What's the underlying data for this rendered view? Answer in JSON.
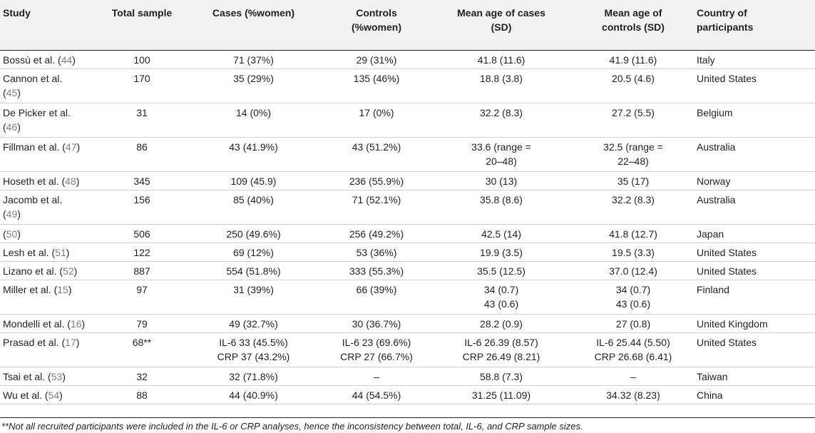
{
  "table": {
    "headers": [
      "Study",
      "Total sample",
      "Cases (%women)",
      "Controls (%women)",
      "Mean age of cases (SD)",
      "Mean age of controls (SD)",
      "Country of participants"
    ],
    "header_lines": [
      [
        "Study"
      ],
      [
        "Total sample"
      ],
      [
        "Cases (%women)"
      ],
      [
        "Controls",
        "(%women)"
      ],
      [
        "Mean age of cases",
        "(SD)"
      ],
      [
        "Mean age of",
        "controls (SD)"
      ],
      [
        "Country of",
        "participants"
      ]
    ],
    "rows": [
      {
        "study_parts": [
          {
            "t": "Bossù et al. ("
          },
          {
            "t": "44",
            "ref": true
          },
          {
            "t": ")"
          }
        ],
        "total": "100",
        "cases": [
          "71 (37%)"
        ],
        "controls": [
          "29 (31%)"
        ],
        "age_cases": [
          "41.8 (11.6)"
        ],
        "age_controls": [
          "41.9 (11.6)"
        ],
        "country": "Italy"
      },
      {
        "study_parts": [
          {
            "t": "Cannon et al."
          },
          {
            "br": true
          },
          {
            "t": "("
          },
          {
            "t": "45",
            "ref": true
          },
          {
            "t": ")"
          }
        ],
        "total": "170",
        "cases": [
          "35 (29%)"
        ],
        "controls": [
          "135 (46%)"
        ],
        "age_cases": [
          "18.8 (3.8)"
        ],
        "age_controls": [
          "20.5 (4.6)"
        ],
        "country": "United States"
      },
      {
        "study_parts": [
          {
            "t": "De Picker et al."
          },
          {
            "br": true
          },
          {
            "t": "("
          },
          {
            "t": "46",
            "ref": true
          },
          {
            "t": ")"
          }
        ],
        "total": "31",
        "cases": [
          "14 (0%)"
        ],
        "controls": [
          "17 (0%)"
        ],
        "age_cases": [
          "32.2 (8.3)"
        ],
        "age_controls": [
          "27.2 (5.5)"
        ],
        "country": "Belgium"
      },
      {
        "study_parts": [
          {
            "t": "Fillman et al. ("
          },
          {
            "t": "47",
            "ref": true
          },
          {
            "t": ")"
          }
        ],
        "total": "86",
        "cases": [
          "43 (41.9%)"
        ],
        "controls": [
          "43 (51.2%)"
        ],
        "age_cases": [
          "33.6 (range =",
          "20–48)"
        ],
        "age_controls": [
          "32.5 (range =",
          "22–48)"
        ],
        "country": "Australia"
      },
      {
        "study_parts": [
          {
            "t": "Hoseth et al. ("
          },
          {
            "t": "48",
            "ref": true
          },
          {
            "t": ")"
          }
        ],
        "total": "345",
        "cases": [
          "109 (45.9)"
        ],
        "controls": [
          "236 (55.9%)"
        ],
        "age_cases": [
          "30 (13)"
        ],
        "age_controls": [
          "35 (17)"
        ],
        "country": "Norway"
      },
      {
        "study_parts": [
          {
            "t": "Jacomb et al."
          },
          {
            "br": true
          },
          {
            "t": "("
          },
          {
            "t": "49",
            "ref": true
          },
          {
            "t": ")"
          }
        ],
        "total": "156",
        "cases": [
          "85 (40%)"
        ],
        "controls": [
          "71 (52.1%)"
        ],
        "age_cases": [
          "35.8 (8.6)"
        ],
        "age_controls": [
          "32.2 (8.3)"
        ],
        "country": "Australia"
      },
      {
        "study_parts": [
          {
            "t": "("
          },
          {
            "t": "50",
            "ref": true
          },
          {
            "t": ")"
          }
        ],
        "total": "506",
        "cases": [
          "250 (49.6%)"
        ],
        "controls": [
          "256 (49.2%)"
        ],
        "age_cases": [
          "42.5 (14)"
        ],
        "age_controls": [
          "41.8 (12.7)"
        ],
        "country": "Japan"
      },
      {
        "study_parts": [
          {
            "t": "Lesh et al. ("
          },
          {
            "t": "51",
            "ref": true
          },
          {
            "t": ")"
          }
        ],
        "total": "122",
        "cases": [
          "69 (12%)"
        ],
        "controls": [
          "53 (36%)"
        ],
        "age_cases": [
          "19.9 (3.5)"
        ],
        "age_controls": [
          "19.5 (3.3)"
        ],
        "country": "United States"
      },
      {
        "study_parts": [
          {
            "t": "Lizano et al. ("
          },
          {
            "t": "52",
            "ref": true
          },
          {
            "t": ")"
          }
        ],
        "total": "887",
        "cases": [
          "554 (51.8%)"
        ],
        "controls": [
          "333 (55.3%)"
        ],
        "age_cases": [
          "35.5 (12.5)"
        ],
        "age_controls": [
          "37.0 (12.4)"
        ],
        "country": "United States"
      },
      {
        "study_parts": [
          {
            "t": "Miller et al. ("
          },
          {
            "t": "15",
            "ref": true
          },
          {
            "t": ")"
          }
        ],
        "total": "97",
        "cases": [
          "31 (39%)"
        ],
        "controls": [
          "66 (39%)"
        ],
        "age_cases": [
          "34 (0.7)",
          "43 (0.6)"
        ],
        "age_controls": [
          "34 (0.7)",
          "43 (0.6)"
        ],
        "country": "Finland"
      },
      {
        "study_parts": [
          {
            "t": "Mondelli et al. ("
          },
          {
            "t": "16",
            "ref": true
          },
          {
            "t": ")"
          }
        ],
        "total": "79",
        "cases": [
          "49 (32.7%)"
        ],
        "controls": [
          "30 (36.7%)"
        ],
        "age_cases": [
          "28.2 (0.9)"
        ],
        "age_controls": [
          "27 (0.8)"
        ],
        "country": "United Kingdom"
      },
      {
        "study_parts": [
          {
            "t": "Prasad et al. ("
          },
          {
            "t": "17",
            "ref": true
          },
          {
            "t": ")"
          }
        ],
        "total": "68**",
        "cases": [
          "IL-6 33 (45.5%)",
          "CRP 37 (43.2%)"
        ],
        "controls": [
          "IL-6 23 (69.6%)",
          "CRP 27 (66.7%)"
        ],
        "age_cases": [
          "IL-6 26.39 (8.57)",
          "CRP 26.49 (8.21)"
        ],
        "age_controls": [
          "IL-6 25.44 (5.50)",
          "CRP 26.68 (6.41)"
        ],
        "country": "United States"
      },
      {
        "study_parts": [
          {
            "t": "Tsai et al. ("
          },
          {
            "t": "53",
            "ref": true
          },
          {
            "t": ")"
          }
        ],
        "total": "32",
        "cases": [
          "32 (71.8%)"
        ],
        "controls": [
          "–"
        ],
        "age_cases": [
          "58.8 (7.3)"
        ],
        "age_controls": [
          "–"
        ],
        "country": "Taiwan"
      },
      {
        "study_parts": [
          {
            "t": "Wu et al. ("
          },
          {
            "t": "54",
            "ref": true
          },
          {
            "t": ")"
          }
        ],
        "total": "88",
        "cases": [
          "44 (40.9%)"
        ],
        "controls": [
          "44 (54.5%)"
        ],
        "age_cases": [
          "31.25 (11.09)"
        ],
        "age_controls": [
          "34.32 (8.23)"
        ],
        "country": "China"
      }
    ]
  },
  "footnote": "**Not all recruited participants were included in the IL-6 or CRP analyses, hence the inconsistency between total, IL-6, and CRP sample sizes.",
  "colors": {
    "text": "#231f20",
    "reference_link": "#7f7f7f",
    "header_bg": "#f2f2f2",
    "row_border": "#cfcfcf"
  }
}
